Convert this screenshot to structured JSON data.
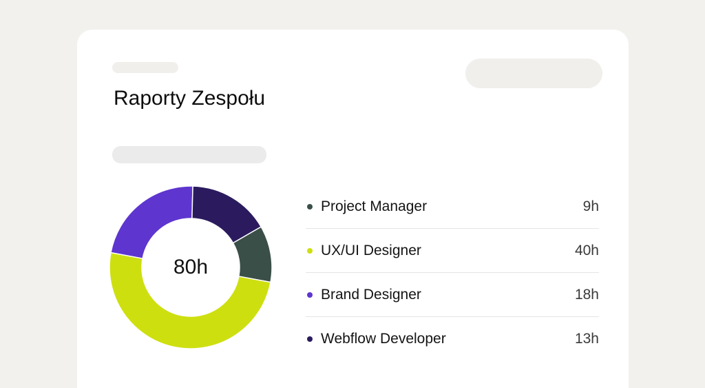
{
  "report": {
    "title": "Raporty Zespołu",
    "total": "80h"
  },
  "chart_data": {
    "type": "pie",
    "style": "donut",
    "categories": [
      "Project Manager",
      "UX/UI Designer",
      "Brand Designer",
      "Webflow Developer"
    ],
    "values": [
      9,
      40,
      18,
      13
    ],
    "colors": [
      "#3a4f47",
      "#cedf10",
      "#5e35cf",
      "#2b1b5e"
    ],
    "center_label": "80h"
  },
  "legend": [
    {
      "role": "Project Manager",
      "hours": "9h",
      "color": "#3a4f47"
    },
    {
      "role": "UX/UI Designer",
      "hours": "40h",
      "color": "#cedf10"
    },
    {
      "role": "Brand Designer",
      "hours": "18h",
      "color": "#5e35cf"
    },
    {
      "role": "Webflow Developer",
      "hours": "13h",
      "color": "#2b1b5e"
    }
  ]
}
